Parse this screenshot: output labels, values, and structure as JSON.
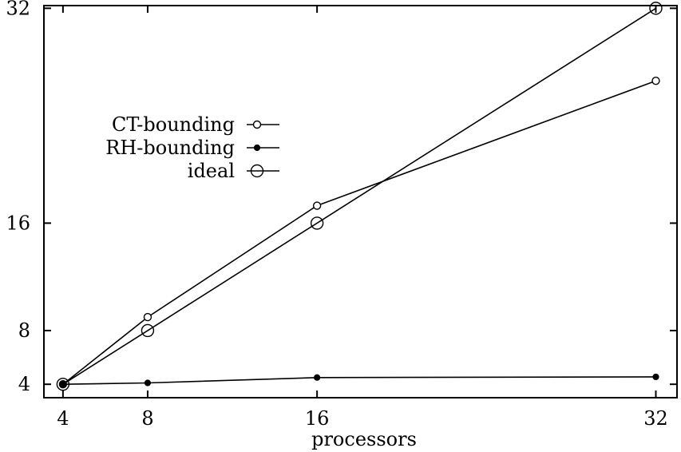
{
  "chart_data": {
    "type": "line",
    "title": "",
    "xlabel": "processors",
    "ylabel": "",
    "x": [
      4,
      8,
      16,
      32
    ],
    "xticks": [
      4,
      8,
      16,
      32
    ],
    "yticks": [
      4,
      8,
      16,
      32
    ],
    "xlim": [
      3.1,
      33.0
    ],
    "ylim": [
      3.0,
      32.2
    ],
    "grid": false,
    "legend_position": "upper-left",
    "series": [
      {
        "name": "CT-bounding",
        "marker": "open-circle-small",
        "values": [
          4,
          9.0,
          17.3,
          26.6
        ]
      },
      {
        "name": "RH-bounding",
        "marker": "filled-circle-small",
        "values": [
          4,
          4.1,
          4.5,
          4.55
        ]
      },
      {
        "name": "ideal",
        "marker": "open-circle-large",
        "values": [
          4,
          8,
          16,
          32
        ]
      }
    ]
  }
}
